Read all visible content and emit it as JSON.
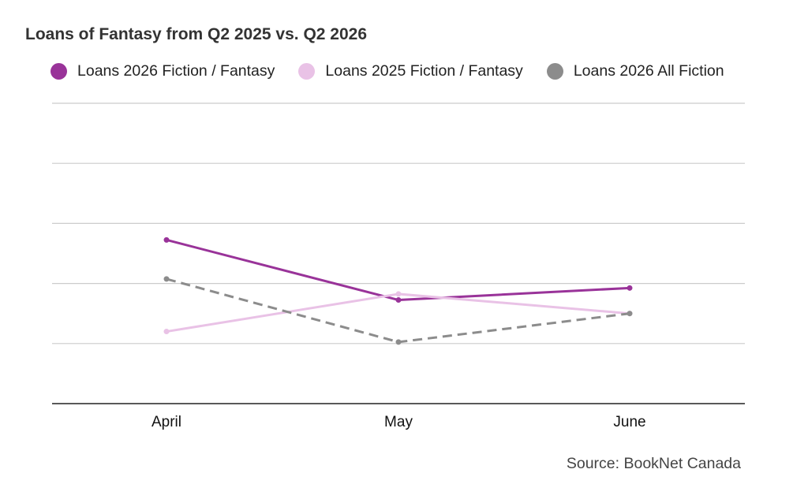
{
  "chart_data": {
    "type": "line",
    "title": "Loans of Fantasy from Q2 2025 vs. Q2 2026",
    "categories": [
      "April",
      "May",
      "June"
    ],
    "series": [
      {
        "name": "Loans 2026 Fiction / Fantasy",
        "values": [
          54.5,
          34.5,
          38.5
        ],
        "color": "#993399",
        "dash": "solid"
      },
      {
        "name": "Loans 2025 Fiction / Fantasy",
        "values": [
          24.0,
          36.5,
          30.0
        ],
        "color": "#e9c2e6",
        "dash": "solid"
      },
      {
        "name": "Loans 2026 All Fiction",
        "values": [
          41.5,
          20.5,
          30.0
        ],
        "color": "#8c8c8c",
        "dash": "dashed"
      }
    ],
    "ylim": [
      0,
      100
    ],
    "gridlines": 5,
    "y_ticks_visible": false,
    "legend_position": "top",
    "xlabel": "",
    "ylabel": "",
    "source": "Source: BookNet Canada"
  }
}
